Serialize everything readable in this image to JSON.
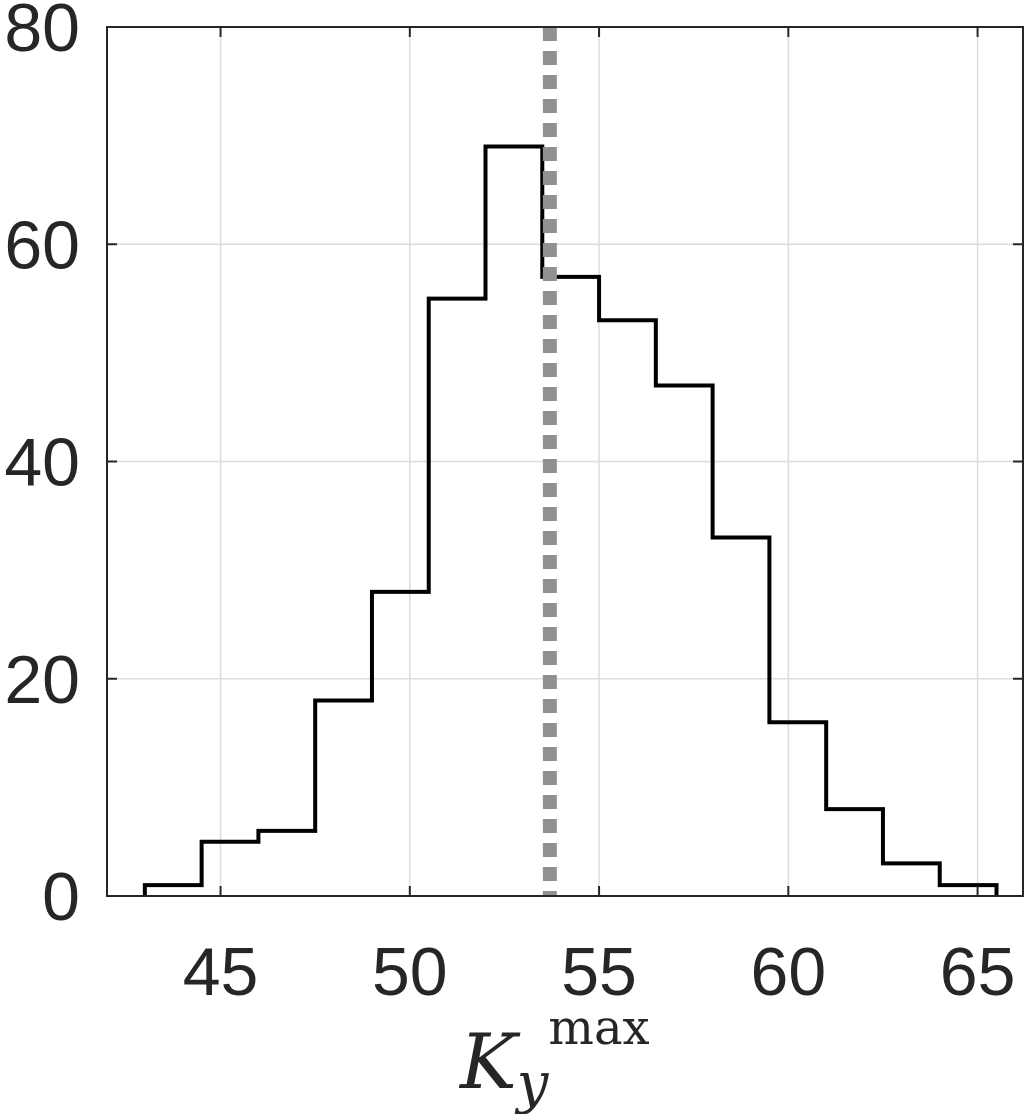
{
  "chart_data": {
    "type": "histogram",
    "title": "",
    "xlabel": {
      "base": "K",
      "subscript": "y",
      "superscript": "max"
    },
    "ylabel": "",
    "xlim": [
      42,
      66.2
    ],
    "ylim": [
      0,
      80
    ],
    "xticks": [
      45,
      50,
      55,
      60,
      65
    ],
    "yticks": [
      0,
      20,
      40,
      60,
      80
    ],
    "xtick_labels": [
      "45",
      "50",
      "55",
      "60",
      "65"
    ],
    "ytick_labels": [
      "0",
      "20",
      "40",
      "60",
      "80"
    ],
    "grid": true,
    "bin_edges": [
      43.0,
      44.5,
      46.0,
      47.5,
      49.0,
      50.5,
      52.0,
      53.5,
      55.0,
      56.5,
      58.0,
      59.5,
      61.0,
      62.5,
      64.0,
      65.5
    ],
    "counts": [
      1,
      5,
      6,
      18,
      28,
      55,
      69,
      57,
      53,
      47,
      33,
      16,
      8,
      3,
      1
    ],
    "reference_line": {
      "x": 53.7,
      "style": "dotted",
      "color": "#919191"
    },
    "histogram_color": "#000000",
    "grid_color": "#dcdcdc"
  }
}
